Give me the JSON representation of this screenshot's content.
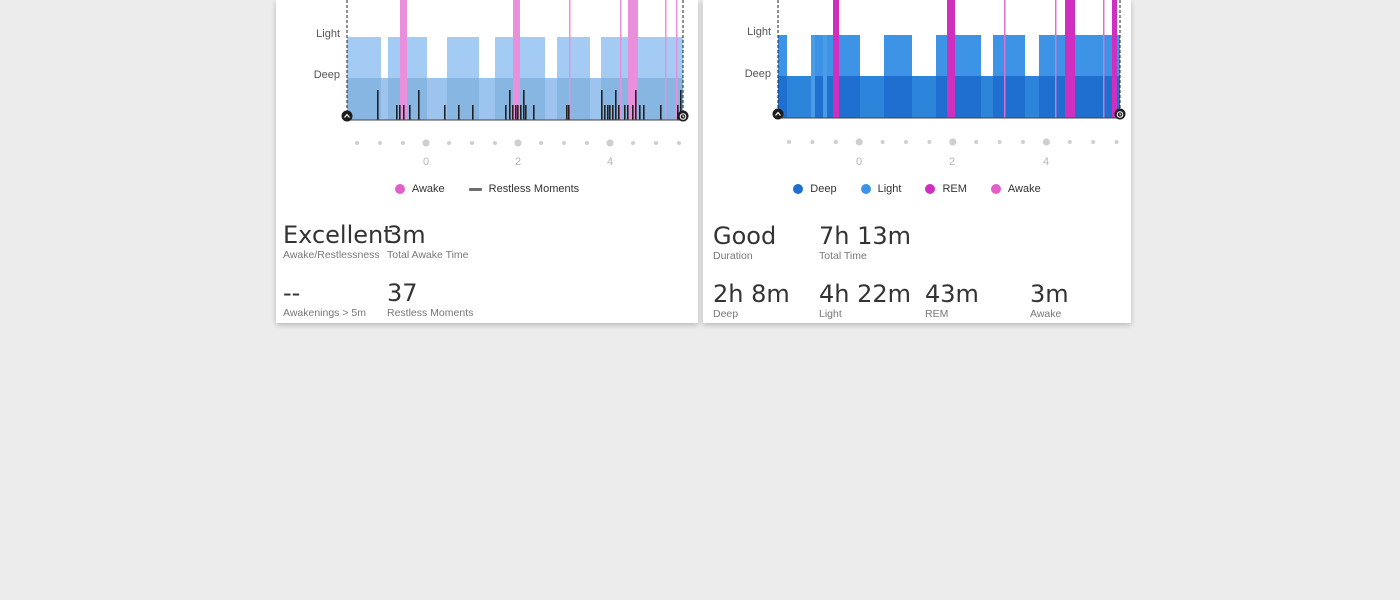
{
  "left_card": {
    "y_labels": [
      "Light",
      "Deep"
    ],
    "x_ticks": [
      "0",
      "2",
      "4"
    ],
    "legend": [
      {
        "label": "Awake",
        "marker": "dot",
        "color": "#e25ec9"
      },
      {
        "label": "Restless Moments",
        "marker": "dash",
        "color": "#6e6e6e"
      }
    ],
    "stats": [
      {
        "value": "Excellent",
        "label": "Awake/Restlessness"
      },
      {
        "value": "3m",
        "label": "Total Awake Time"
      },
      {
        "value": "--",
        "label": "Awakenings > 5m"
      },
      {
        "value": "37",
        "label": "Restless Moments"
      }
    ]
  },
  "right_card": {
    "y_labels": [
      "Light",
      "Deep"
    ],
    "x_ticks": [
      "0",
      "2",
      "4"
    ],
    "legend": [
      {
        "label": "Deep",
        "marker": "dot",
        "color": "#1e6fcf"
      },
      {
        "label": "Light",
        "marker": "dot",
        "color": "#3d93e6"
      },
      {
        "label": "REM",
        "marker": "dot",
        "color": "#cf2fbf"
      },
      {
        "label": "Awake",
        "marker": "dot",
        "color": "#e25ec9"
      }
    ],
    "stats_row1": [
      {
        "value": "Good",
        "label": "Duration"
      },
      {
        "value": "7h 13m",
        "label": "Total Time"
      }
    ],
    "stats_row2": [
      {
        "value": "2h 8m",
        "label": "Deep"
      },
      {
        "value": "4h 22m",
        "label": "Light"
      },
      {
        "value": "43m",
        "label": "REM"
      },
      {
        "value": "3m",
        "label": "Awake"
      }
    ]
  },
  "colors": {
    "light_blue_pale": "#a3cbf3",
    "deep_blue_pale": "#88b6e3",
    "awake_pale": "#ea8fdc",
    "light_blue": "#3d93e6",
    "deep_blue": "#1e6fcf",
    "rem": "#cf2fbf",
    "restless": "#222222",
    "tick_dot": "#cfcfcf"
  }
}
